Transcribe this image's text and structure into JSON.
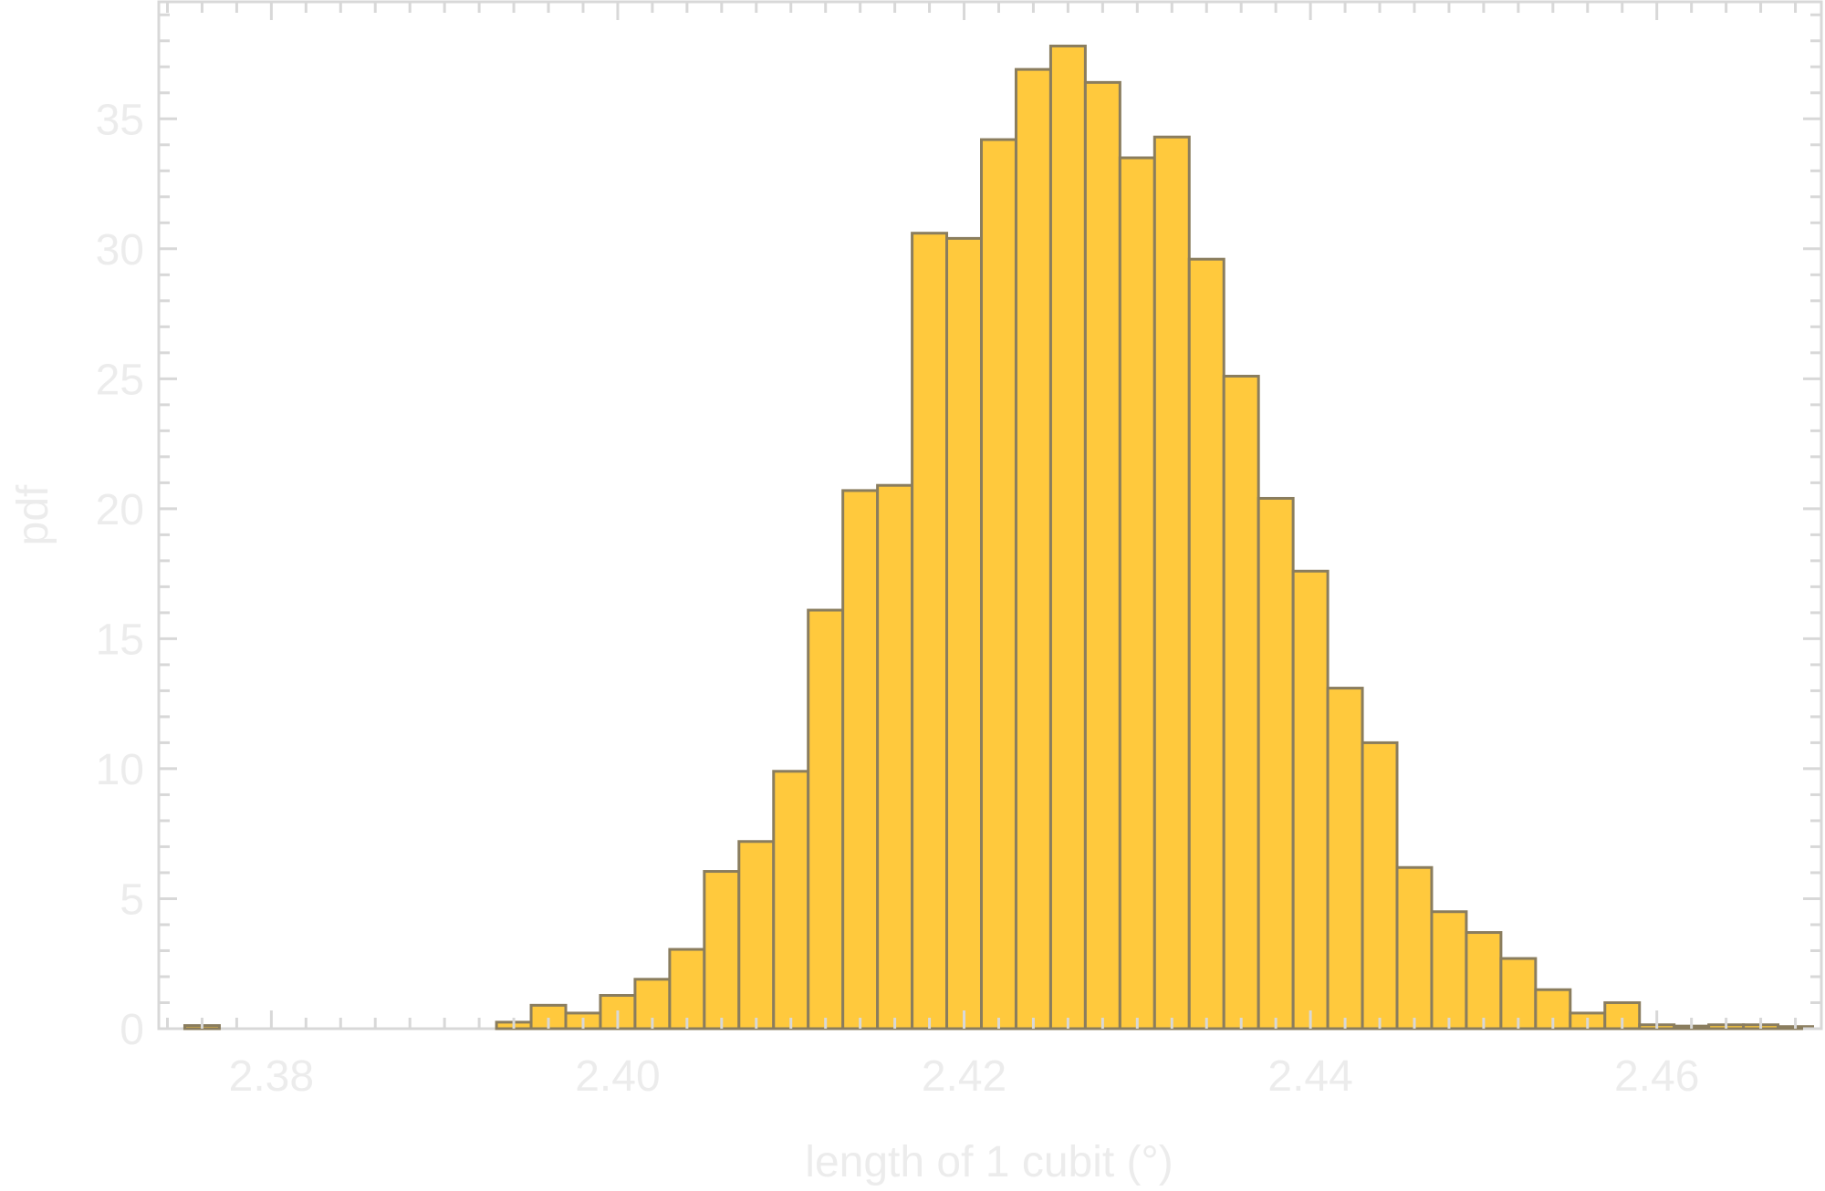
{
  "chart_data": {
    "type": "bar",
    "subtype": "histogram",
    "title": "",
    "xlabel": "length of 1 cubit (°)",
    "ylabel": "pdf",
    "xlim": [
      2.3735,
      2.4695
    ],
    "ylim": [
      0,
      39.5
    ],
    "x_ticks": [
      2.38,
      2.4,
      2.42,
      2.44,
      2.46
    ],
    "x_tick_labels": [
      "2.38",
      "2.40",
      "2.42",
      "2.44",
      "2.46"
    ],
    "y_ticks": [
      0,
      5,
      10,
      15,
      20,
      25,
      30,
      35
    ],
    "y_tick_labels": [
      "0",
      "5",
      "10",
      "15",
      "20",
      "25",
      "30",
      "35"
    ],
    "bin_width": 0.002,
    "bins": [
      {
        "x0": 2.375,
        "value": 0.12
      },
      {
        "x0": 2.393,
        "value": 0.25
      },
      {
        "x0": 2.395,
        "value": 0.9
      },
      {
        "x0": 2.397,
        "value": 0.6
      },
      {
        "x0": 2.399,
        "value": 1.28
      },
      {
        "x0": 2.401,
        "value": 1.9
      },
      {
        "x0": 2.403,
        "value": 3.05
      },
      {
        "x0": 2.405,
        "value": 6.05
      },
      {
        "x0": 2.407,
        "value": 7.2
      },
      {
        "x0": 2.409,
        "value": 9.9
      },
      {
        "x0": 2.411,
        "value": 16.1
      },
      {
        "x0": 2.413,
        "value": 20.7
      },
      {
        "x0": 2.415,
        "value": 20.9
      },
      {
        "x0": 2.417,
        "value": 30.6
      },
      {
        "x0": 2.419,
        "value": 30.4
      },
      {
        "x0": 2.421,
        "value": 34.2
      },
      {
        "x0": 2.423,
        "value": 36.9
      },
      {
        "x0": 2.425,
        "value": 37.8
      },
      {
        "x0": 2.427,
        "value": 36.4
      },
      {
        "x0": 2.429,
        "value": 33.5
      },
      {
        "x0": 2.431,
        "value": 34.3
      },
      {
        "x0": 2.433,
        "value": 29.6
      },
      {
        "x0": 2.435,
        "value": 25.1
      },
      {
        "x0": 2.437,
        "value": 20.4
      },
      {
        "x0": 2.439,
        "value": 17.6
      },
      {
        "x0": 2.441,
        "value": 13.1
      },
      {
        "x0": 2.443,
        "value": 11.0
      },
      {
        "x0": 2.445,
        "value": 6.2
      },
      {
        "x0": 2.447,
        "value": 4.5
      },
      {
        "x0": 2.449,
        "value": 3.7
      },
      {
        "x0": 2.451,
        "value": 2.7
      },
      {
        "x0": 2.453,
        "value": 1.5
      },
      {
        "x0": 2.455,
        "value": 0.6
      },
      {
        "x0": 2.457,
        "value": 1.0
      },
      {
        "x0": 2.459,
        "value": 0.15
      },
      {
        "x0": 2.461,
        "value": 0.1
      },
      {
        "x0": 2.463,
        "value": 0.15
      },
      {
        "x0": 2.465,
        "value": 0.15
      },
      {
        "x0": 2.467,
        "value": 0.08
      }
    ],
    "grid": false,
    "legend": "none",
    "colors": {
      "bar_fill": "#ffc93d",
      "bar_stroke": "#8a7d5e",
      "frame": "#d8d8d8",
      "labels": "#ececec"
    }
  }
}
